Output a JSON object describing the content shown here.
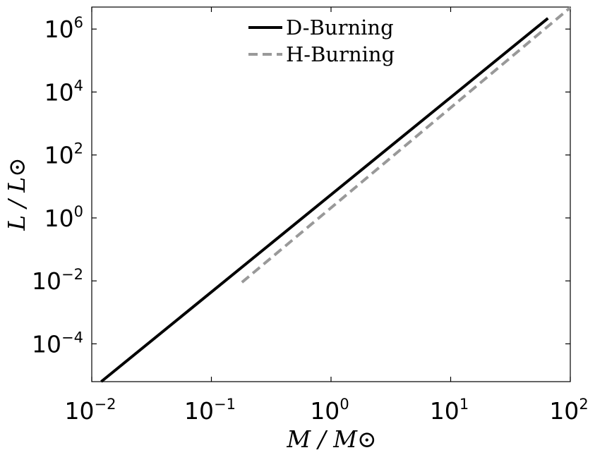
{
  "chart_data": {
    "type": "line",
    "title": "",
    "xlabel": "M / M⊙",
    "ylabel": "L / L⊙",
    "xscale": "log",
    "yscale": "log",
    "xlim": [
      0.01,
      100
    ],
    "ylim": [
      6.3e-06,
      5000000
    ],
    "grid": false,
    "legend_position": "top-center",
    "x_ticks": [
      {
        "value": 0.01,
        "base": "10",
        "exp": "−2"
      },
      {
        "value": 0.1,
        "base": "10",
        "exp": "−1"
      },
      {
        "value": 1,
        "base": "10",
        "exp": "0"
      },
      {
        "value": 10,
        "base": "10",
        "exp": "1"
      },
      {
        "value": 100,
        "base": "10",
        "exp": "2"
      }
    ],
    "y_ticks": [
      {
        "value": 0.0001,
        "base": "10",
        "exp": "−4"
      },
      {
        "value": 0.01,
        "base": "10",
        "exp": "−2"
      },
      {
        "value": 1,
        "base": "10",
        "exp": "0"
      },
      {
        "value": 100,
        "base": "10",
        "exp": "2"
      },
      {
        "value": 10000,
        "base": "10",
        "exp": "4"
      },
      {
        "value": 1000000,
        "base": "10",
        "exp": "6"
      }
    ],
    "series": [
      {
        "name": "D-Burning",
        "color": "#000000",
        "dash": "solid",
        "x": [
          0.012,
          65
        ],
        "y": [
          6.3e-06,
          2200000
        ]
      },
      {
        "name": "H-Burning",
        "color": "#999999",
        "dash": "dashed",
        "x": [
          0.18,
          100
        ],
        "y": [
          0.009,
          4800000
        ]
      }
    ]
  }
}
